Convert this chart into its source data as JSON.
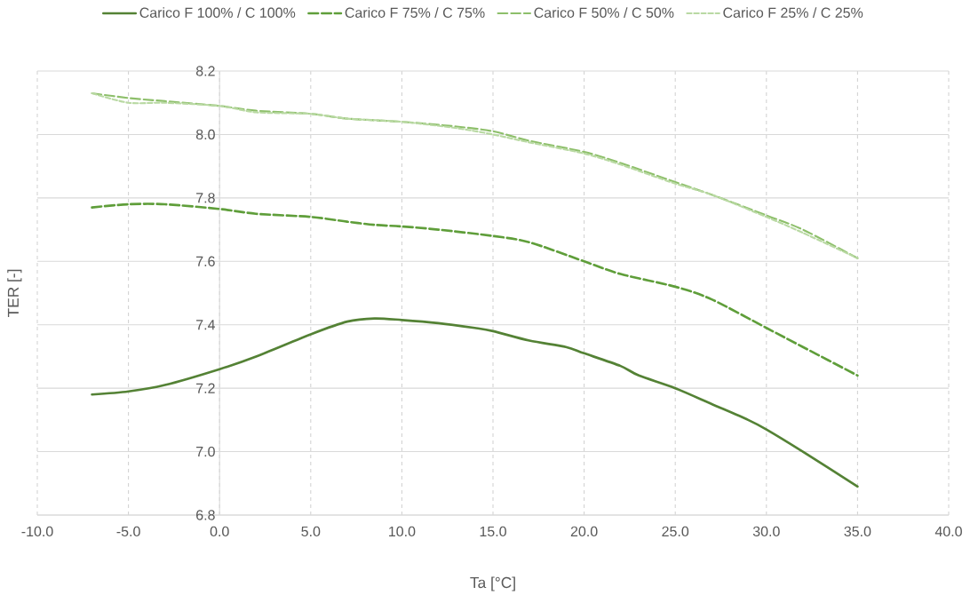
{
  "chart_data": {
    "type": "line",
    "xlabel": "Ta [°C]",
    "ylabel": "TER [-]",
    "xlim": [
      -10,
      40
    ],
    "ylim": [
      6.8,
      8.2
    ],
    "xticks": [
      {
        "value": -10,
        "label": "-10.0"
      },
      {
        "value": -5,
        "label": "-5.0"
      },
      {
        "value": 0,
        "label": "0.0"
      },
      {
        "value": 5,
        "label": "5.0"
      },
      {
        "value": 10,
        "label": "10.0"
      },
      {
        "value": 15,
        "label": "15.0"
      },
      {
        "value": 20,
        "label": "20.0"
      },
      {
        "value": 25,
        "label": "25.0"
      },
      {
        "value": 30,
        "label": "30.0"
      },
      {
        "value": 35,
        "label": "35.0"
      },
      {
        "value": 40,
        "label": "40.0"
      }
    ],
    "yticks": [
      {
        "value": 6.8,
        "label": "6.8"
      },
      {
        "value": 7.0,
        "label": "7.0"
      },
      {
        "value": 7.2,
        "label": "7.2"
      },
      {
        "value": 7.4,
        "label": "7.4"
      },
      {
        "value": 7.6,
        "label": "7.6"
      },
      {
        "value": 7.8,
        "label": "7.8"
      },
      {
        "value": 8.0,
        "label": "8.0"
      },
      {
        "value": 8.2,
        "label": "8.2"
      }
    ],
    "grid": true,
    "legend": "top",
    "marker": "none",
    "series": [
      {
        "name": "Carico F 100% / C 100%",
        "color": "#548235",
        "line_style": "solid",
        "x": [
          -7,
          -5,
          -3,
          0,
          2,
          5,
          7,
          8.5,
          10,
          12,
          14,
          15,
          17,
          19,
          20,
          22,
          23,
          25,
          27,
          29,
          30,
          32,
          35
        ],
        "values": [
          7.18,
          7.19,
          7.21,
          7.26,
          7.3,
          7.37,
          7.41,
          7.42,
          7.415,
          7.405,
          7.39,
          7.38,
          7.35,
          7.33,
          7.31,
          7.27,
          7.24,
          7.2,
          7.15,
          7.1,
          7.07,
          7.0,
          6.89
        ]
      },
      {
        "name": "Carico F 75% / C 75%",
        "color": "#5f9e3a",
        "line_style": "dashed",
        "x": [
          -7,
          -5,
          -3,
          0,
          2,
          5,
          7,
          8.5,
          10,
          12,
          15,
          17,
          20,
          22,
          25,
          27,
          30,
          32,
          35
        ],
        "values": [
          7.77,
          7.78,
          7.78,
          7.765,
          7.75,
          7.74,
          7.725,
          7.715,
          7.71,
          7.7,
          7.68,
          7.66,
          7.6,
          7.56,
          7.52,
          7.48,
          7.39,
          7.33,
          7.24
        ]
      },
      {
        "name": "Carico F 50% / C 50%",
        "color": "#8dbf6a",
        "line_style": "dashed",
        "x": [
          -7,
          -5,
          -3,
          0,
          2,
          5,
          7,
          10,
          13,
          15,
          17,
          20,
          22,
          25,
          27,
          30,
          32,
          35
        ],
        "values": [
          8.13,
          8.115,
          8.105,
          8.09,
          8.075,
          8.065,
          8.05,
          8.04,
          8.025,
          8.01,
          7.98,
          7.945,
          7.91,
          7.85,
          7.81,
          7.745,
          7.7,
          7.61
        ]
      },
      {
        "name": "Carico F 25% / C 25%",
        "color": "#b9d9a3",
        "line_style": "dotted",
        "x": [
          -7,
          -5,
          -3,
          0,
          2,
          5,
          7,
          10,
          13,
          15,
          17,
          20,
          22,
          25,
          27,
          30,
          32,
          35
        ],
        "values": [
          8.13,
          8.1,
          8.1,
          8.09,
          8.07,
          8.065,
          8.05,
          8.04,
          8.02,
          8.0,
          7.975,
          7.94,
          7.905,
          7.845,
          7.81,
          7.74,
          7.69,
          7.61
        ]
      }
    ]
  }
}
